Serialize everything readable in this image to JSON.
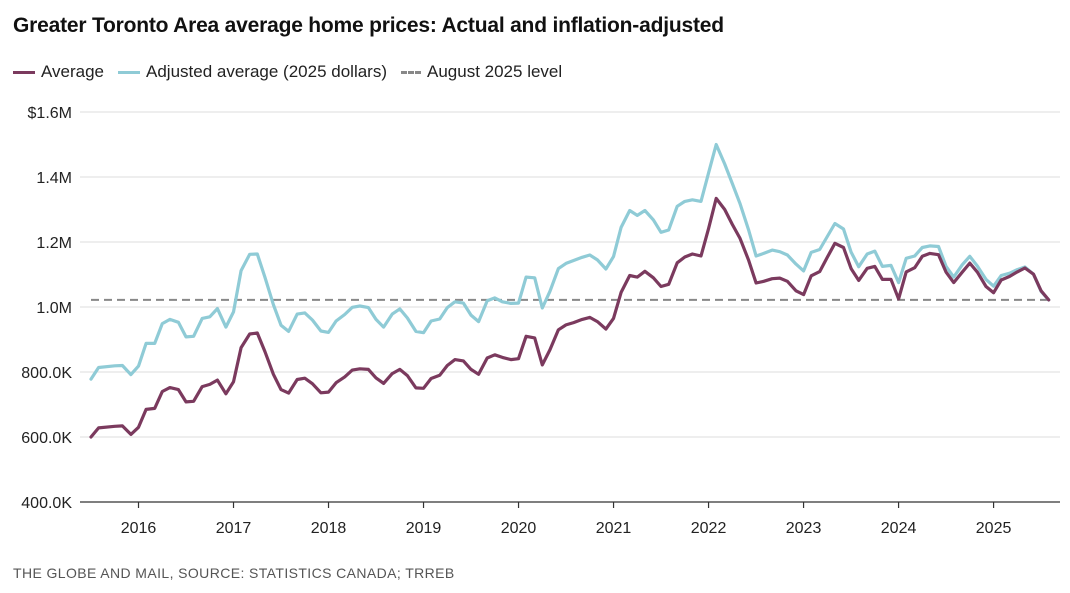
{
  "title": "Greater Toronto Area average home prices: Actual and inflation-adjusted",
  "source": "THE GLOBE AND MAIL, SOURCE: STATISTICS CANADA; TRREB",
  "colors": {
    "average": "#7b3a5e",
    "adjusted": "#8fcbd6",
    "reference": "#888888",
    "grid": "#dddddd",
    "axis": "#333333"
  },
  "chart_data": {
    "type": "line",
    "title": "Greater Toronto Area average home prices: Actual and inflation-adjusted",
    "ylim": [
      400000,
      1600000
    ],
    "y_ticks": [
      {
        "value": 400000,
        "label": "400.0K"
      },
      {
        "value": 600000,
        "label": "600.0K"
      },
      {
        "value": 800000,
        "label": "800.0K"
      },
      {
        "value": 1000000,
        "label": "1.0M"
      },
      {
        "value": 1200000,
        "label": "1.2M"
      },
      {
        "value": 1400000,
        "label": "1.4M"
      },
      {
        "value": 1600000,
        "label": "$1.6M"
      }
    ],
    "x_ticks": [
      "2016",
      "2017",
      "2018",
      "2019",
      "2020",
      "2021",
      "2022",
      "2023",
      "2024",
      "2025"
    ],
    "x_start": "2015-07",
    "x_end": "2025-08",
    "grid": "horizontal",
    "legend_position": "top-left",
    "reference_line": {
      "name": "August 2025 level",
      "value": 1022000
    },
    "series": [
      {
        "name": "Average",
        "values": [
          [
            2015.5,
            600000
          ],
          [
            2015.58,
            628000
          ],
          [
            2015.75,
            633000
          ],
          [
            2015.83,
            634000
          ],
          [
            2015.92,
            608000
          ],
          [
            2016.0,
            630000
          ],
          [
            2016.08,
            685000
          ],
          [
            2016.17,
            688000
          ],
          [
            2016.25,
            740000
          ],
          [
            2016.33,
            752000
          ],
          [
            2016.42,
            746000
          ],
          [
            2016.5,
            708000
          ],
          [
            2016.58,
            710000
          ],
          [
            2016.67,
            755000
          ],
          [
            2016.75,
            762000
          ],
          [
            2016.83,
            775000
          ],
          [
            2016.92,
            733000
          ],
          [
            2017.0,
            770000
          ],
          [
            2017.08,
            875000
          ],
          [
            2017.17,
            917000
          ],
          [
            2017.25,
            920000
          ],
          [
            2017.33,
            863000
          ],
          [
            2017.42,
            793000
          ],
          [
            2017.5,
            746000
          ],
          [
            2017.58,
            735000
          ],
          [
            2017.67,
            777000
          ],
          [
            2017.75,
            781000
          ],
          [
            2017.83,
            764000
          ],
          [
            2017.92,
            736000
          ],
          [
            2018.0,
            738000
          ],
          [
            2018.08,
            767000
          ],
          [
            2018.17,
            785000
          ],
          [
            2018.25,
            806000
          ],
          [
            2018.33,
            810000
          ],
          [
            2018.42,
            808000
          ],
          [
            2018.5,
            782000
          ],
          [
            2018.58,
            765000
          ],
          [
            2018.67,
            795000
          ],
          [
            2018.75,
            808000
          ],
          [
            2018.83,
            789000
          ],
          [
            2018.92,
            751000
          ],
          [
            2019.0,
            750000
          ],
          [
            2019.08,
            780000
          ],
          [
            2019.17,
            790000
          ],
          [
            2019.25,
            820000
          ],
          [
            2019.33,
            838000
          ],
          [
            2019.42,
            834000
          ],
          [
            2019.5,
            808000
          ],
          [
            2019.58,
            793000
          ],
          [
            2019.67,
            843000
          ],
          [
            2019.75,
            853000
          ],
          [
            2019.83,
            845000
          ],
          [
            2019.92,
            838000
          ],
          [
            2020.0,
            841000
          ],
          [
            2020.08,
            910000
          ],
          [
            2020.17,
            905000
          ],
          [
            2020.25,
            822000
          ],
          [
            2020.33,
            868000
          ],
          [
            2020.42,
            930000
          ],
          [
            2020.5,
            945000
          ],
          [
            2020.58,
            952000
          ],
          [
            2020.67,
            962000
          ],
          [
            2020.75,
            968000
          ],
          [
            2020.83,
            955000
          ],
          [
            2020.92,
            932000
          ],
          [
            2021.0,
            965000
          ],
          [
            2021.08,
            1045000
          ],
          [
            2021.17,
            1097000
          ],
          [
            2021.25,
            1092000
          ],
          [
            2021.33,
            1110000
          ],
          [
            2021.42,
            1090000
          ],
          [
            2021.5,
            1063000
          ],
          [
            2021.58,
            1070000
          ],
          [
            2021.67,
            1136000
          ],
          [
            2021.75,
            1154000
          ],
          [
            2021.83,
            1163000
          ],
          [
            2021.92,
            1157000
          ],
          [
            2022.0,
            1242000
          ],
          [
            2022.08,
            1334000
          ],
          [
            2022.17,
            1300000
          ],
          [
            2022.25,
            1254000
          ],
          [
            2022.33,
            1212000
          ],
          [
            2022.42,
            1145000
          ],
          [
            2022.5,
            1074000
          ],
          [
            2022.58,
            1079000
          ],
          [
            2022.67,
            1087000
          ],
          [
            2022.75,
            1089000
          ],
          [
            2022.83,
            1079000
          ],
          [
            2022.92,
            1050000
          ],
          [
            2023.0,
            1038000
          ],
          [
            2023.08,
            1096000
          ],
          [
            2023.17,
            1109000
          ],
          [
            2023.25,
            1153000
          ],
          [
            2023.33,
            1196000
          ],
          [
            2023.42,
            1183000
          ],
          [
            2023.5,
            1118000
          ],
          [
            2023.58,
            1082000
          ],
          [
            2023.67,
            1119000
          ],
          [
            2023.75,
            1125000
          ],
          [
            2023.83,
            1085000
          ],
          [
            2023.92,
            1085000
          ],
          [
            2024.0,
            1025000
          ],
          [
            2024.08,
            1108000
          ],
          [
            2024.17,
            1121000
          ],
          [
            2024.25,
            1156000
          ],
          [
            2024.33,
            1165000
          ],
          [
            2024.42,
            1161000
          ],
          [
            2024.5,
            1107000
          ],
          [
            2024.58,
            1075000
          ],
          [
            2024.67,
            1107000
          ],
          [
            2024.75,
            1135000
          ],
          [
            2024.83,
            1107000
          ],
          [
            2024.92,
            1063000
          ],
          [
            2025.0,
            1044000
          ],
          [
            2025.08,
            1083000
          ],
          [
            2025.17,
            1094000
          ],
          [
            2025.25,
            1108000
          ],
          [
            2025.33,
            1120000
          ],
          [
            2025.42,
            1101000
          ],
          [
            2025.5,
            1050000
          ],
          [
            2025.58,
            1022000
          ]
        ]
      },
      {
        "name": "Adjusted average (2025 dollars)",
        "values": [
          [
            2015.5,
            778000
          ],
          [
            2015.58,
            814000
          ],
          [
            2015.75,
            819000
          ],
          [
            2015.83,
            820000
          ],
          [
            2015.92,
            792000
          ],
          [
            2016.0,
            818000
          ],
          [
            2016.08,
            888000
          ],
          [
            2016.17,
            888000
          ],
          [
            2016.25,
            949000
          ],
          [
            2016.33,
            962000
          ],
          [
            2016.42,
            953000
          ],
          [
            2016.5,
            908000
          ],
          [
            2016.58,
            910000
          ],
          [
            2016.67,
            965000
          ],
          [
            2016.75,
            970000
          ],
          [
            2016.83,
            995000
          ],
          [
            2016.92,
            938000
          ],
          [
            2017.0,
            985000
          ],
          [
            2017.08,
            1112000
          ],
          [
            2017.17,
            1162000
          ],
          [
            2017.25,
            1163000
          ],
          [
            2017.33,
            1092000
          ],
          [
            2017.42,
            1007000
          ],
          [
            2017.5,
            944000
          ],
          [
            2017.58,
            925000
          ],
          [
            2017.67,
            978000
          ],
          [
            2017.75,
            982000
          ],
          [
            2017.83,
            960000
          ],
          [
            2017.92,
            926000
          ],
          [
            2018.0,
            922000
          ],
          [
            2018.08,
            957000
          ],
          [
            2018.17,
            977000
          ],
          [
            2018.25,
            999000
          ],
          [
            2018.33,
            1003000
          ],
          [
            2018.42,
            998000
          ],
          [
            2018.5,
            962000
          ],
          [
            2018.58,
            938000
          ],
          [
            2018.67,
            978000
          ],
          [
            2018.75,
            994000
          ],
          [
            2018.83,
            966000
          ],
          [
            2018.92,
            925000
          ],
          [
            2019.0,
            921000
          ],
          [
            2019.08,
            957000
          ],
          [
            2019.17,
            963000
          ],
          [
            2019.25,
            998000
          ],
          [
            2019.33,
            1016000
          ],
          [
            2019.42,
            1012000
          ],
          [
            2019.5,
            975000
          ],
          [
            2019.58,
            955000
          ],
          [
            2019.67,
            1019000
          ],
          [
            2019.75,
            1028000
          ],
          [
            2019.83,
            1016000
          ],
          [
            2019.92,
            1011000
          ],
          [
            2020.0,
            1012000
          ],
          [
            2020.08,
            1092000
          ],
          [
            2020.17,
            1090000
          ],
          [
            2020.25,
            997000
          ],
          [
            2020.33,
            1048000
          ],
          [
            2020.42,
            1118000
          ],
          [
            2020.5,
            1134000
          ],
          [
            2020.58,
            1143000
          ],
          [
            2020.67,
            1153000
          ],
          [
            2020.75,
            1160000
          ],
          [
            2020.83,
            1145000
          ],
          [
            2020.92,
            1117000
          ],
          [
            2021.0,
            1155000
          ],
          [
            2021.08,
            1245000
          ],
          [
            2021.17,
            1297000
          ],
          [
            2021.25,
            1282000
          ],
          [
            2021.33,
            1297000
          ],
          [
            2021.42,
            1268000
          ],
          [
            2021.5,
            1230000
          ],
          [
            2021.58,
            1237000
          ],
          [
            2021.67,
            1310000
          ],
          [
            2021.75,
            1325000
          ],
          [
            2021.83,
            1330000
          ],
          [
            2021.92,
            1325000
          ],
          [
            2022.0,
            1413000
          ],
          [
            2022.08,
            1500000
          ],
          [
            2022.17,
            1440000
          ],
          [
            2022.25,
            1380000
          ],
          [
            2022.33,
            1319000
          ],
          [
            2022.42,
            1238000
          ],
          [
            2022.5,
            1157000
          ],
          [
            2022.58,
            1165000
          ],
          [
            2022.67,
            1175000
          ],
          [
            2022.75,
            1170000
          ],
          [
            2022.83,
            1160000
          ],
          [
            2022.92,
            1132000
          ],
          [
            2023.0,
            1111000
          ],
          [
            2023.08,
            1168000
          ],
          [
            2023.17,
            1177000
          ],
          [
            2023.25,
            1217000
          ],
          [
            2023.33,
            1257000
          ],
          [
            2023.42,
            1240000
          ],
          [
            2023.5,
            1169000
          ],
          [
            2023.58,
            1124000
          ],
          [
            2023.67,
            1163000
          ],
          [
            2023.75,
            1172000
          ],
          [
            2023.83,
            1125000
          ],
          [
            2023.92,
            1128000
          ],
          [
            2024.0,
            1075000
          ],
          [
            2024.08,
            1150000
          ],
          [
            2024.17,
            1157000
          ],
          [
            2024.25,
            1183000
          ],
          [
            2024.33,
            1188000
          ],
          [
            2024.42,
            1186000
          ],
          [
            2024.5,
            1125000
          ],
          [
            2024.58,
            1092000
          ],
          [
            2024.67,
            1130000
          ],
          [
            2024.75,
            1156000
          ],
          [
            2024.83,
            1126000
          ],
          [
            2024.92,
            1085000
          ],
          [
            2025.0,
            1064000
          ],
          [
            2025.08,
            1097000
          ],
          [
            2025.17,
            1104000
          ],
          [
            2025.25,
            1115000
          ],
          [
            2025.33,
            1123000
          ],
          [
            2025.42,
            1101000
          ],
          [
            2025.5,
            1048000
          ],
          [
            2025.58,
            1022000
          ]
        ]
      }
    ]
  }
}
